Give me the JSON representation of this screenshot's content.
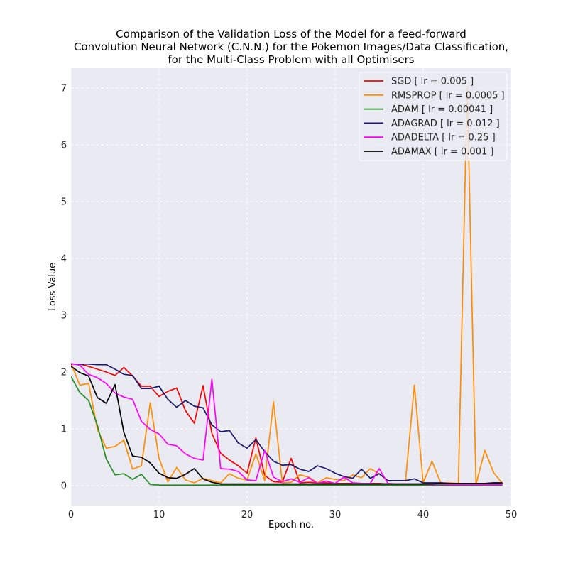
{
  "chart_data": {
    "type": "line",
    "title": [
      "Comparison of the Validation Loss of the Model for a feed-forward",
      "Convolution Neural Network (C.N.N.) for the Pokemon Images/Data Classification,",
      "for the Multi-Class Problem with all Optimisers"
    ],
    "xlabel": "Epoch no.",
    "ylabel": "Loss Value",
    "xlim": [
      0,
      50
    ],
    "ylim": [
      -0.35,
      7.35
    ],
    "xticks": [
      0,
      10,
      20,
      30,
      40,
      50
    ],
    "yticks": [
      0,
      1,
      2,
      3,
      4,
      5,
      6,
      7
    ],
    "grid": true,
    "legend_position": "upper right",
    "x": [
      0,
      1,
      2,
      3,
      4,
      5,
      6,
      7,
      8,
      9,
      10,
      11,
      12,
      13,
      14,
      15,
      16,
      17,
      18,
      19,
      20,
      21,
      22,
      23,
      24,
      25,
      26,
      27,
      28,
      29,
      30,
      31,
      32,
      33,
      34,
      35,
      36,
      37,
      38,
      39,
      40,
      41,
      42,
      43,
      44,
      45,
      46,
      47,
      48,
      49
    ],
    "series": [
      {
        "name": "SGD [ lr = 0.005 ]",
        "color": "#ff0000",
        "values": [
          2.14,
          2.14,
          2.1,
          2.05,
          2.0,
          1.94,
          2.08,
          1.93,
          1.75,
          1.75,
          1.57,
          1.66,
          1.72,
          1.32,
          1.1,
          1.76,
          0.92,
          0.57,
          0.45,
          0.35,
          0.22,
          0.84,
          0.18,
          0.07,
          0.06,
          0.48,
          0.05,
          0.06,
          0.05,
          0.05,
          0.04,
          0.04,
          0.04,
          0.04,
          0.04,
          0.04,
          0.03,
          0.03,
          0.03,
          0.03,
          0.03,
          0.03,
          0.03,
          0.03,
          0.03,
          0.03,
          0.03,
          0.03,
          0.03,
          0.03
        ]
      },
      {
        "name": "RMSPROP [ lr = 0.0005 ]",
        "color": "#ff8c00",
        "values": [
          2.15,
          1.77,
          1.8,
          0.99,
          0.66,
          0.69,
          0.8,
          0.29,
          0.35,
          1.46,
          0.48,
          0.07,
          0.32,
          0.1,
          0.05,
          0.13,
          0.09,
          0.05,
          0.21,
          0.13,
          0.1,
          0.56,
          0.09,
          1.48,
          0.05,
          0.06,
          0.19,
          0.15,
          0.05,
          0.14,
          0.11,
          0.09,
          0.19,
          0.14,
          0.3,
          0.21,
          0.09,
          0.09,
          0.09,
          1.77,
          0.05,
          0.43,
          0.05,
          0.05,
          0.04,
          7.03,
          0.02,
          0.62,
          0.23,
          0.04
        ]
      },
      {
        "name": "ADAM [ lr = 0.00041 ]",
        "color": "#228b22",
        "values": [
          1.92,
          1.64,
          1.5,
          1.06,
          0.47,
          0.19,
          0.21,
          0.11,
          0.2,
          0.02,
          0.01,
          0.01,
          0.01,
          0.01,
          0.01,
          0.01,
          0.01,
          0.01,
          0.01,
          0.01,
          0.01,
          0.01,
          0.01,
          0.01,
          0.01,
          0.01,
          0.01,
          0.01,
          0.01,
          0.01,
          0.01,
          0.01,
          0.01,
          0.01,
          0.01,
          0.01,
          0.01,
          0.01,
          0.01,
          0.01,
          0.01,
          0.01,
          0.01,
          0.01,
          0.01,
          0.01,
          0.01,
          0.01,
          0.01,
          0.01
        ]
      },
      {
        "name": "ADAGRAD [ lr = 0.012 ]",
        "color": "#191970",
        "values": [
          2.14,
          2.14,
          2.14,
          2.13,
          2.13,
          2.05,
          1.96,
          1.94,
          1.71,
          1.71,
          1.75,
          1.52,
          1.38,
          1.5,
          1.4,
          1.37,
          1.07,
          0.95,
          0.97,
          0.75,
          0.66,
          0.81,
          0.6,
          0.43,
          0.36,
          0.37,
          0.29,
          0.25,
          0.35,
          0.3,
          0.22,
          0.16,
          0.13,
          0.29,
          0.13,
          0.21,
          0.09,
          0.09,
          0.09,
          0.12,
          0.05,
          0.05,
          0.05,
          0.04,
          0.04,
          0.04,
          0.04,
          0.04,
          0.04,
          0.04
        ]
      },
      {
        "name": "ADADELTA [ lr = 0.25 ]",
        "color": "#ff00ff",
        "values": [
          2.15,
          2.12,
          1.96,
          1.9,
          1.8,
          1.63,
          1.56,
          1.52,
          1.13,
          0.99,
          0.91,
          0.73,
          0.7,
          0.56,
          0.48,
          0.45,
          1.87,
          0.3,
          0.29,
          0.25,
          0.1,
          0.09,
          0.62,
          0.15,
          0.07,
          0.12,
          0.06,
          0.14,
          0.04,
          0.08,
          0.04,
          0.15,
          0.05,
          0.04,
          0.04,
          0.3,
          0.04,
          0.03,
          0.03,
          0.03,
          0.03,
          0.02,
          0.03,
          0.02,
          0.02,
          0.02,
          0.02,
          0.02,
          0.02,
          0.02
        ]
      },
      {
        "name": "ADAMAX [ lr = 0.001 ]",
        "color": "#000000",
        "values": [
          2.1,
          1.99,
          1.93,
          1.55,
          1.45,
          1.78,
          0.94,
          0.52,
          0.5,
          0.4,
          0.22,
          0.14,
          0.13,
          0.2,
          0.3,
          0.12,
          0.06,
          0.03,
          0.03,
          0.03,
          0.03,
          0.03,
          0.03,
          0.03,
          0.03,
          0.03,
          0.03,
          0.03,
          0.03,
          0.03,
          0.03,
          0.03,
          0.03,
          0.03,
          0.03,
          0.03,
          0.03,
          0.03,
          0.03,
          0.03,
          0.03,
          0.03,
          0.04,
          0.04,
          0.04,
          0.04,
          0.04,
          0.04,
          0.05,
          0.05
        ]
      }
    ]
  }
}
